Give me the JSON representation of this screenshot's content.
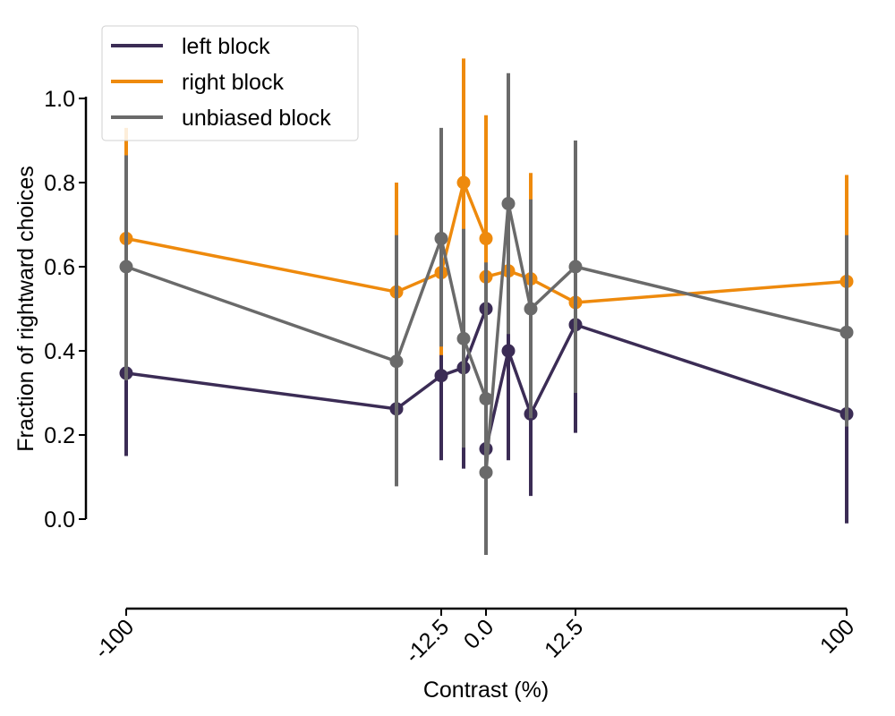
{
  "chart_data": {
    "type": "line",
    "xlabel": "Contrast (%)",
    "ylabel": "Fraction of rightward choices",
    "ylim": [
      -0.2,
      1.1
    ],
    "y_axis_range": [
      0,
      1
    ],
    "xticks": [
      {
        "label": "-100",
        "index": 0
      },
      {
        "label": "-12.5",
        "index": 2
      },
      {
        "label": "0.0",
        "index": 4
      },
      {
        "label": "12.5",
        "index": 6
      },
      {
        "label": "100",
        "index": 9
      }
    ],
    "yticks": [
      "0.0",
      "0.2",
      "0.4",
      "0.6",
      "0.8",
      "1.0"
    ],
    "grid": false,
    "legend_position": "top-left",
    "series": [
      {
        "name": "left block",
        "color": "#3b2c55",
        "points": [
          {
            "idx": 0,
            "y": 0.347,
            "lo": 0.15,
            "hi": 0.55
          },
          {
            "idx": 1,
            "y": 0.262,
            "lo": 0.14,
            "hi": 0.37
          },
          {
            "idx": 2,
            "y": 0.341,
            "lo": 0.14,
            "hi": 0.39
          },
          {
            "idx": 2.5,
            "y": 0.36,
            "lo": 0.12,
            "hi": 0.48
          },
          {
            "idx": 3.5,
            "y": 0.5,
            "lo": 0.35,
            "hi": 0.58
          },
          {
            "idx": 4,
            "y": 0.167,
            "lo": 0.05,
            "hi": 0.3
          },
          {
            "idx": 4.5,
            "y": 0.4,
            "lo": 0.14,
            "hi": 0.52
          },
          {
            "idx": 5,
            "y": 0.25,
            "lo": 0.055,
            "hi": 0.44
          },
          {
            "idx": 6,
            "y": 0.462,
            "lo": 0.205,
            "hi": 0.5
          },
          {
            "idx": 9,
            "y": 0.25,
            "lo": -0.01,
            "hi": 0.42
          }
        ]
      },
      {
        "name": "right block",
        "color": "#ee8a0d",
        "points": [
          {
            "idx": 0,
            "y": 0.667,
            "lo": 0.4,
            "hi": 0.93
          },
          {
            "idx": 1,
            "y": 0.54,
            "lo": 0.28,
            "hi": 0.8
          },
          {
            "idx": 2,
            "y": 0.586,
            "lo": 0.32,
            "hi": 0.64
          },
          {
            "idx": 2.5,
            "y": 0.8,
            "lo": 0.51,
            "hi": 1.095
          },
          {
            "idx": 3.5,
            "y": 0.667,
            "lo": 0.38,
            "hi": 0.96
          },
          {
            "idx": 4,
            "y": 0.576,
            "lo": 0.4,
            "hi": 0.65
          },
          {
            "idx": 4.5,
            "y": 0.59,
            "lo": 0.44,
            "hi": 0.76
          },
          {
            "idx": 5,
            "y": 0.571,
            "lo": 0.32,
            "hi": 0.823
          },
          {
            "idx": 6,
            "y": 0.515,
            "lo": 0.3,
            "hi": 0.72
          },
          {
            "idx": 9,
            "y": 0.565,
            "lo": 0.31,
            "hi": 0.818
          }
        ]
      },
      {
        "name": "unbiased block",
        "color": "#6a6a6a",
        "points": [
          {
            "idx": 0,
            "y": 0.6,
            "lo": 0.33,
            "hi": 0.865
          },
          {
            "idx": 1,
            "y": 0.375,
            "lo": 0.078,
            "hi": 0.675
          },
          {
            "idx": 2,
            "y": 0.667,
            "lo": 0.41,
            "hi": 0.93
          },
          {
            "idx": 2.5,
            "y": 0.429,
            "lo": 0.17,
            "hi": 0.69
          },
          {
            "idx": 3.5,
            "y": 0.286,
            "lo": -0.04,
            "hi": 0.61
          },
          {
            "idx": 4,
            "y": 0.111,
            "lo": -0.085,
            "hi": 0.31
          },
          {
            "idx": 4.5,
            "y": 0.75,
            "lo": 0.44,
            "hi": 1.06
          },
          {
            "idx": 5,
            "y": 0.5,
            "lo": 0.24,
            "hi": 0.76
          },
          {
            "idx": 6,
            "y": 0.6,
            "lo": 0.3,
            "hi": 0.9
          },
          {
            "idx": 9,
            "y": 0.444,
            "lo": 0.22,
            "hi": 0.675
          }
        ]
      }
    ]
  }
}
